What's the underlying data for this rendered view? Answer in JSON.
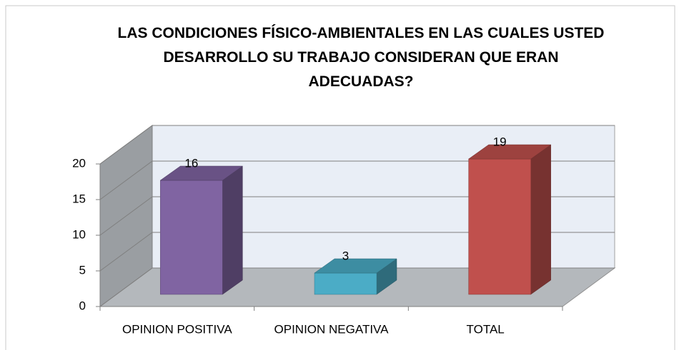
{
  "chart_data": {
    "type": "bar3d",
    "title": "LAS CONDICIONES FÍSICO-AMBIENTALES EN LAS CUALES USTED DESARROLLO SU TRABAJO CONSIDERAN QUE ERAN ADECUADAS?",
    "categories": [
      "OPINION POSITIVA",
      "OPINION NEGATIVA",
      "TOTAL"
    ],
    "values": [
      16,
      3,
      19
    ],
    "colors": [
      "#8064a2",
      "#4bacc6",
      "#c0504d"
    ],
    "ylim": [
      0,
      20
    ],
    "yticks": [
      0,
      5,
      10,
      15,
      20
    ],
    "grid": true
  }
}
